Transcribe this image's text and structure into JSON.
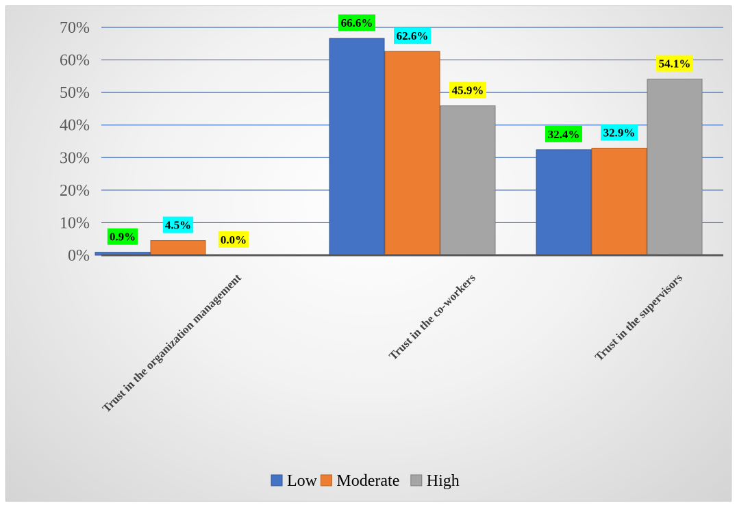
{
  "chart_data": {
    "type": "bar",
    "categories": [
      "Trust in the organization management",
      "Trust in the co-workers",
      "Trust in the supervisors"
    ],
    "series": [
      {
        "name": "Low",
        "values": [
          0.9,
          66.6,
          32.4
        ],
        "labels": [
          "0.9%",
          "66.6%",
          "32.4%"
        ],
        "color": "#4472C4",
        "label_bg": "#00FF00"
      },
      {
        "name": "Moderate",
        "values": [
          4.5,
          62.6,
          32.9
        ],
        "labels": [
          "4.5%",
          "62.6%",
          "32.9%"
        ],
        "color": "#ED7D31",
        "label_bg": "#00FFFF"
      },
      {
        "name": "High",
        "values": [
          0.0,
          45.9,
          54.1
        ],
        "labels": [
          "0.0%",
          "45.9%",
          "54.1%"
        ],
        "color": "#A5A5A5",
        "label_bg": "#FFFF00"
      }
    ],
    "y_ticks": [
      "0%",
      "10%",
      "20%",
      "30%",
      "40%",
      "50%",
      "60%",
      "70%"
    ],
    "ylim": [
      0,
      70
    ],
    "grid": true,
    "legend_position": "bottom"
  }
}
